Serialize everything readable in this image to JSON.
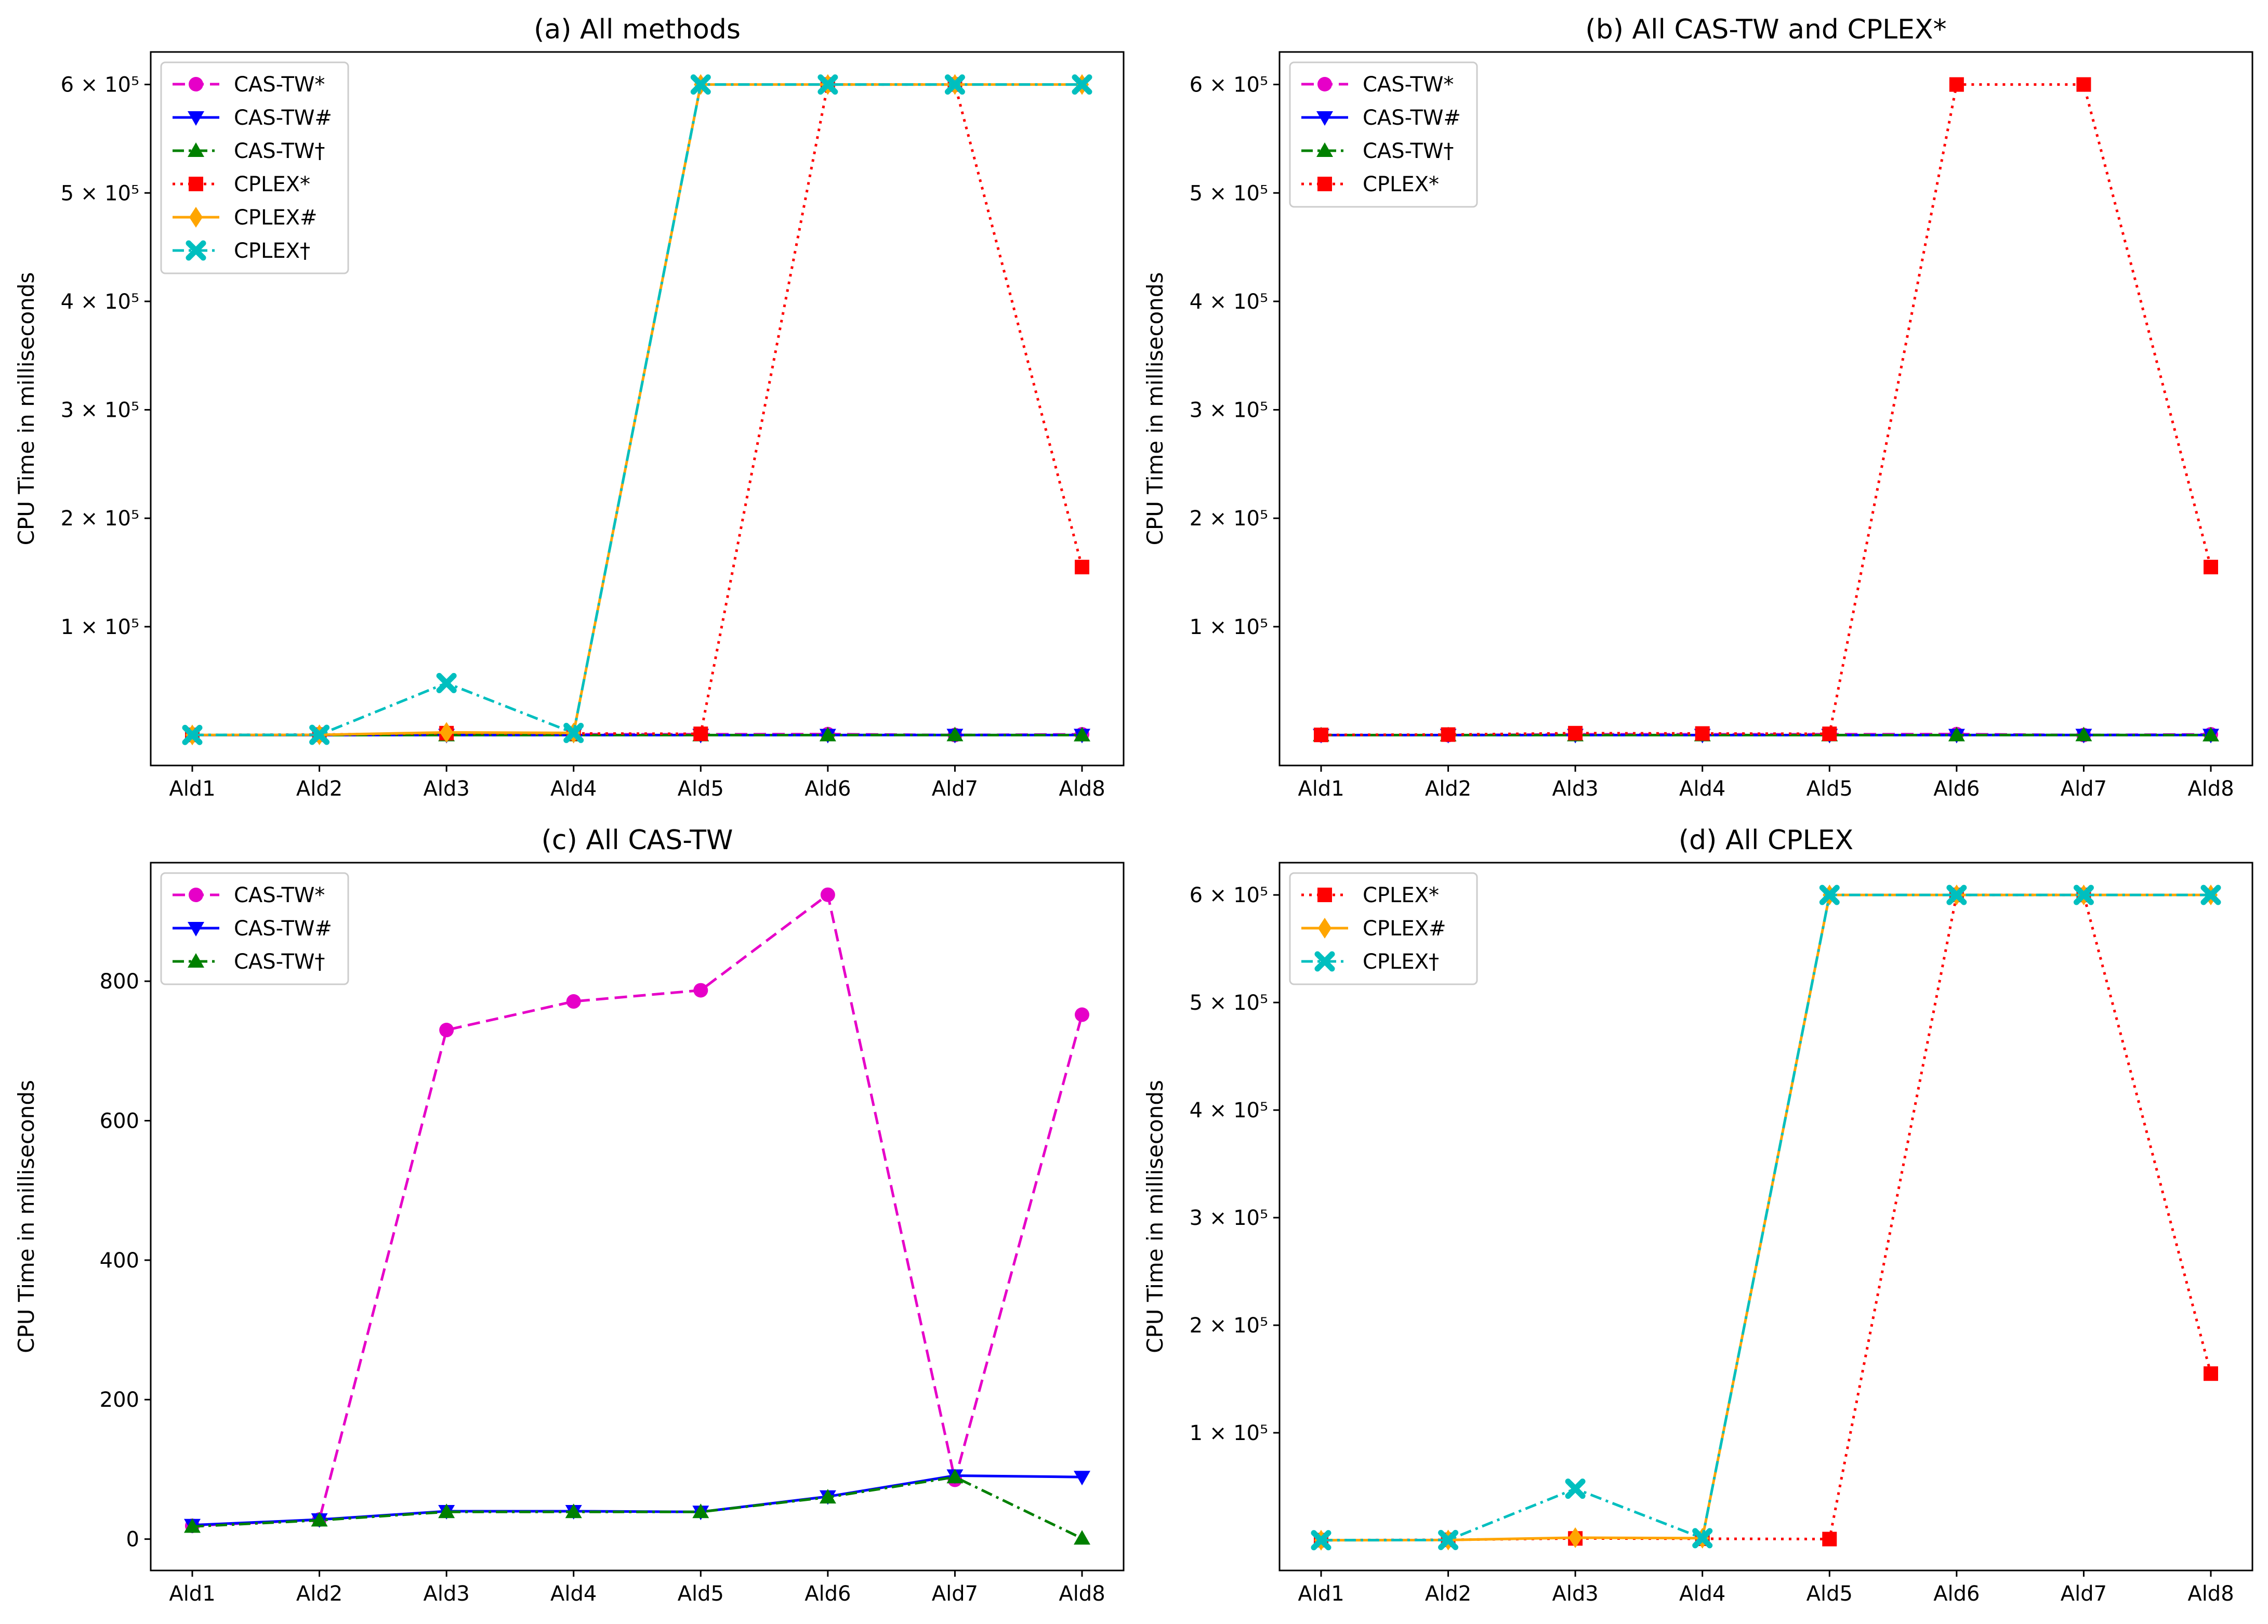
{
  "chart_data": [
    {
      "type": "line",
      "title": "(a) All methods",
      "xlabel": "",
      "ylabel": "CPU Time in milliseconds",
      "categories": [
        "Ald1",
        "Ald2",
        "Ald3",
        "Ald4",
        "Ald5",
        "Ald6",
        "Ald7",
        "Ald8"
      ],
      "ylim": [
        -28000,
        630000
      ],
      "yticks": [
        100000,
        200000,
        300000,
        400000,
        500000,
        600000
      ],
      "ytick_labels": [
        "1 × 10⁵",
        "2 × 10⁵",
        "3 × 10⁵",
        "4 × 10⁵",
        "5 × 10⁵",
        "6 × 10⁵"
      ],
      "legend_position": "top-left",
      "series": [
        {
          "name": "CAS-TW*",
          "values": [
            19,
            28,
            730,
            771,
            787,
            924,
            85,
            752
          ],
          "color": "#e600c8",
          "line": "dashed",
          "marker": "circle"
        },
        {
          "name": "CAS-TW#",
          "values": [
            20,
            28,
            40,
            40,
            39,
            61,
            91,
            89
          ],
          "color": "#0000ff",
          "line": "solid",
          "marker": "triangle-down"
        },
        {
          "name": "CAS-TW†",
          "values": [
            18,
            27,
            39,
            39,
            39,
            60,
            89,
            1
          ],
          "color": "#008000",
          "line": "dashdot",
          "marker": "triangle-up"
        },
        {
          "name": "CPLEX*",
          "values": [
            200,
            500,
            1800,
            1500,
            1200,
            600000,
            600000,
            155000
          ],
          "color": "#ff0000",
          "line": "dotted",
          "marker": "square"
        },
        {
          "name": "CPLEX#",
          "values": [
            150,
            300,
            2500,
            2000,
            600000,
            600000,
            600000,
            600000
          ],
          "color": "#ffa500",
          "line": "solid",
          "marker": "diamond"
        },
        {
          "name": "CPLEX†",
          "values": [
            150,
            300,
            48000,
            2000,
            600000,
            600000,
            600000,
            600000
          ],
          "color": "#00bfbf",
          "line": "dashdot",
          "marker": "x"
        }
      ]
    },
    {
      "type": "line",
      "title": "(b) All CAS-TW and CPLEX*",
      "xlabel": "",
      "ylabel": "CPU Time in milliseconds",
      "categories": [
        "Ald1",
        "Ald2",
        "Ald3",
        "Ald4",
        "Ald5",
        "Ald6",
        "Ald7",
        "Ald8"
      ],
      "ylim": [
        -28000,
        630000
      ],
      "yticks": [
        100000,
        200000,
        300000,
        400000,
        500000,
        600000
      ],
      "ytick_labels": [
        "1 × 10⁵",
        "2 × 10⁵",
        "3 × 10⁵",
        "4 × 10⁵",
        "5 × 10⁵",
        "6 × 10⁵"
      ],
      "legend_position": "top-left",
      "series": [
        {
          "name": "CAS-TW*",
          "values": [
            19,
            28,
            730,
            771,
            787,
            924,
            85,
            752
          ],
          "color": "#e600c8",
          "line": "dashed",
          "marker": "circle"
        },
        {
          "name": "CAS-TW#",
          "values": [
            20,
            28,
            40,
            40,
            39,
            61,
            91,
            89
          ],
          "color": "#0000ff",
          "line": "solid",
          "marker": "triangle-down"
        },
        {
          "name": "CAS-TW†",
          "values": [
            18,
            27,
            39,
            39,
            39,
            60,
            89,
            1
          ],
          "color": "#008000",
          "line": "dashdot",
          "marker": "triangle-up"
        },
        {
          "name": "CPLEX*",
          "values": [
            200,
            500,
            1800,
            1500,
            1200,
            600000,
            600000,
            155000
          ],
          "color": "#ff0000",
          "line": "dotted",
          "marker": "square"
        }
      ]
    },
    {
      "type": "line",
      "title": "(c) All CAS-TW",
      "xlabel": "",
      "ylabel": "CPU Time in milliseconds",
      "categories": [
        "Ald1",
        "Ald2",
        "Ald3",
        "Ald4",
        "Ald5",
        "Ald6",
        "Ald7",
        "Ald8"
      ],
      "ylim": [
        -45,
        970
      ],
      "yticks": [
        0,
        200,
        400,
        600,
        800
      ],
      "ytick_labels": [
        "0",
        "200",
        "400",
        "600",
        "800"
      ],
      "legend_position": "top-left",
      "series": [
        {
          "name": "CAS-TW*",
          "values": [
            19,
            28,
            730,
            771,
            787,
            924,
            85,
            752
          ],
          "color": "#e600c8",
          "line": "dashed",
          "marker": "circle"
        },
        {
          "name": "CAS-TW#",
          "values": [
            20,
            28,
            40,
            40,
            39,
            61,
            91,
            89
          ],
          "color": "#0000ff",
          "line": "solid",
          "marker": "triangle-down"
        },
        {
          "name": "CAS-TW†",
          "values": [
            18,
            27,
            39,
            39,
            39,
            60,
            89,
            1
          ],
          "color": "#008000",
          "line": "dashdot",
          "marker": "triangle-up"
        }
      ]
    },
    {
      "type": "line",
      "title": "(d) All CPLEX",
      "xlabel": "",
      "ylabel": "CPU Time in milliseconds",
      "categories": [
        "Ald1",
        "Ald2",
        "Ald3",
        "Ald4",
        "Ald5",
        "Ald6",
        "Ald7",
        "Ald8"
      ],
      "ylim": [
        -28000,
        630000
      ],
      "yticks": [
        100000,
        200000,
        300000,
        400000,
        500000,
        600000
      ],
      "ytick_labels": [
        "1 × 10⁵",
        "2 × 10⁵",
        "3 × 10⁵",
        "4 × 10⁵",
        "5 × 10⁵",
        "6 × 10⁵"
      ],
      "legend_position": "top-left",
      "series": [
        {
          "name": "CPLEX*",
          "values": [
            200,
            500,
            1800,
            1500,
            1200,
            600000,
            600000,
            155000
          ],
          "color": "#ff0000",
          "line": "dotted",
          "marker": "square"
        },
        {
          "name": "CPLEX#",
          "values": [
            150,
            300,
            2500,
            2000,
            600000,
            600000,
            600000,
            600000
          ],
          "color": "#ffa500",
          "line": "solid",
          "marker": "diamond"
        },
        {
          "name": "CPLEX†",
          "values": [
            150,
            300,
            48000,
            2000,
            600000,
            600000,
            600000,
            600000
          ],
          "color": "#00bfbf",
          "line": "dashdot",
          "marker": "x"
        }
      ]
    }
  ]
}
